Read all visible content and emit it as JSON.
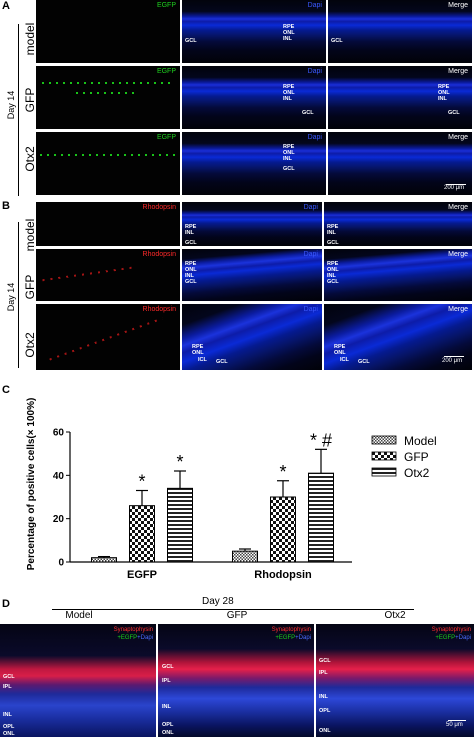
{
  "panels": {
    "a": {
      "letter": "A",
      "day_label": "Day 14",
      "rows": [
        {
          "label": "model",
          "channels": [
            "EGFP",
            "Dapi",
            "Merge"
          ],
          "layers": [
            "RPE",
            "ONL",
            "INL",
            "GCL"
          ]
        },
        {
          "label": "GFP",
          "channels": [
            "EGFP",
            "Dapi",
            "Merge"
          ],
          "layers": [
            "RPE",
            "ONL",
            "INL",
            "GCL"
          ]
        },
        {
          "label": "Otx2",
          "channels": [
            "EGFP",
            "Dapi",
            "Merge"
          ],
          "layers": [
            "RPE",
            "ONL",
            "INL",
            "GCL"
          ]
        }
      ],
      "scale": "200 μm"
    },
    "b": {
      "letter": "B",
      "day_label": "Day 14",
      "rows": [
        {
          "label": "model",
          "channels": [
            "Rhodopsin",
            "Dapi",
            "Merge"
          ],
          "layers": [
            "RPE",
            "INL",
            "GCL"
          ]
        },
        {
          "label": "GFP",
          "channels": [
            "Rhodopsin",
            "Dapi",
            "Merge"
          ],
          "layers": [
            "RPE",
            "ONL",
            "INL",
            "GCL"
          ]
        },
        {
          "label": "Otx2",
          "channels": [
            "Rhodopsin",
            "Dapi",
            "Merge"
          ],
          "layers": [
            "RPE",
            "ONL",
            "ICL",
            "GCL"
          ]
        }
      ],
      "scale": "200 μm"
    },
    "c": {
      "letter": "C"
    },
    "d": {
      "letter": "D",
      "day_label": "Day 28",
      "columns": [
        "Model",
        "GFP",
        "Otx2"
      ],
      "tag_line1": "Synaptophysin",
      "tag_line2_parts": [
        "+EGFP",
        "+Dapi"
      ],
      "layers_model": [
        "GCL",
        "IPL",
        "INL",
        "OPL",
        "ONL"
      ],
      "layers_gfp": [
        "GCL",
        "IPL",
        "INL",
        "OPL",
        "ONL"
      ],
      "layers_otx2": [
        "GCL",
        "IPL",
        "INL",
        "OPL",
        "ONL"
      ],
      "scale": "50 μm"
    }
  },
  "colors": {
    "egfp": "#1fd11f",
    "rhodopsin": "#ff2a2a",
    "dapi": "#3a58ff",
    "merge": "#ffffff"
  },
  "chart_data": {
    "type": "bar",
    "title": "",
    "xlabel": "",
    "ylabel": "Percentage of positive cells(× 100%)",
    "ylim": [
      0,
      60
    ],
    "yticks": [
      "0",
      "20",
      "40",
      "60"
    ],
    "categories": [
      "EGFP",
      "Rhodopsin"
    ],
    "series": [
      {
        "name": "Model",
        "values": [
          2,
          5
        ],
        "errors": [
          0.5,
          1
        ],
        "annotations": [
          "",
          ""
        ],
        "pattern": "checker"
      },
      {
        "name": "GFP",
        "values": [
          26,
          30
        ],
        "errors": [
          7,
          7.5
        ],
        "annotations": [
          "*",
          "*"
        ],
        "pattern": "check"
      },
      {
        "name": "Otx2",
        "values": [
          34,
          41
        ],
        "errors": [
          8,
          11
        ],
        "annotations": [
          "*",
          "* #"
        ],
        "pattern": "stripes"
      }
    ],
    "legend_position": "top-right"
  }
}
